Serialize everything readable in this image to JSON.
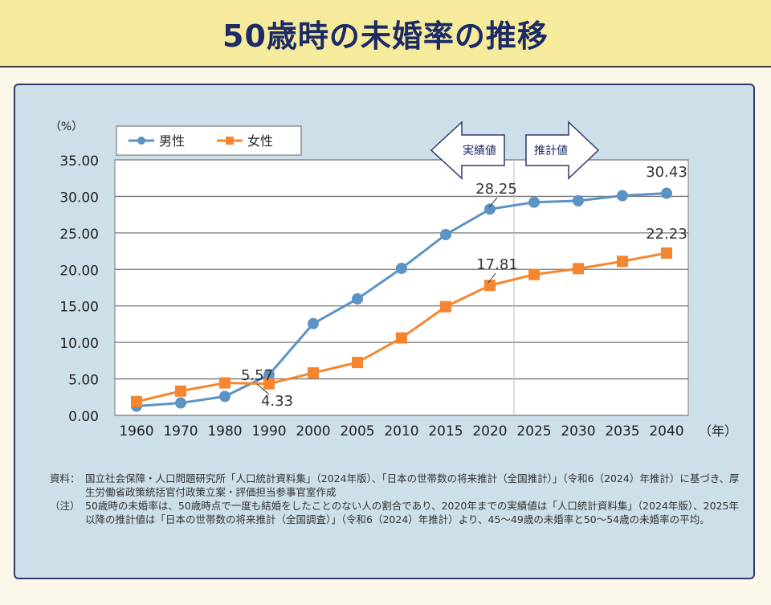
{
  "title": "50歳時の未婚率の推移",
  "notes": {
    "source_label": "資料：",
    "source": "国立社会保障・人口問題研究所「人口統計資料集」（2024年版）、「日本の世帯数の将来推計（全国推計）」（令和6（2024）年推計）に基づき、厚生労働省政策統括官付政策立案・評価担当参事官室作成",
    "note_label": "（注）",
    "note": "50歳時の未婚率は、50歳時点で一度も結婚をしたことのない人の割合であり、2020年までの実績値は「人口統計資料集」（2024年版）、2025年以降の推計値は「日本の世帯数の将来推計（全国調査）」（令和6（2024）年推計）より、45〜49歳の未婚率と50〜54歳の未婚率の平均。"
  },
  "chart_data": {
    "type": "line",
    "ylabel": "（%）",
    "xlabel": "（年）",
    "ylim": [
      0,
      35
    ],
    "yticks": [
      "0.00",
      "5.00",
      "10.00",
      "15.00",
      "20.00",
      "25.00",
      "30.00",
      "35.00"
    ],
    "categories": [
      "1960",
      "1970",
      "1980",
      "1990",
      "2000",
      "2005",
      "2010",
      "2015",
      "2020",
      "2025",
      "2030",
      "2035",
      "2040"
    ],
    "grid": true,
    "legend_position": "top-left",
    "series": [
      {
        "name": "男性",
        "color": "#5b93c5",
        "marker": "circle",
        "values": [
          1.26,
          1.7,
          2.6,
          5.57,
          12.57,
          15.96,
          20.14,
          24.77,
          28.25,
          29.2,
          29.4,
          30.1,
          30.43
        ]
      },
      {
        "name": "女性",
        "color": "#f5862f",
        "marker": "square",
        "values": [
          1.88,
          3.33,
          4.45,
          4.33,
          5.82,
          7.25,
          10.61,
          14.89,
          17.81,
          19.3,
          20.1,
          21.1,
          22.23
        ]
      }
    ],
    "annotations": [
      "5.57",
      "4.33",
      "28.25",
      "17.81",
      "30.43",
      "22.23"
    ],
    "arrows": {
      "left": "実績値",
      "right": "推計値"
    }
  }
}
